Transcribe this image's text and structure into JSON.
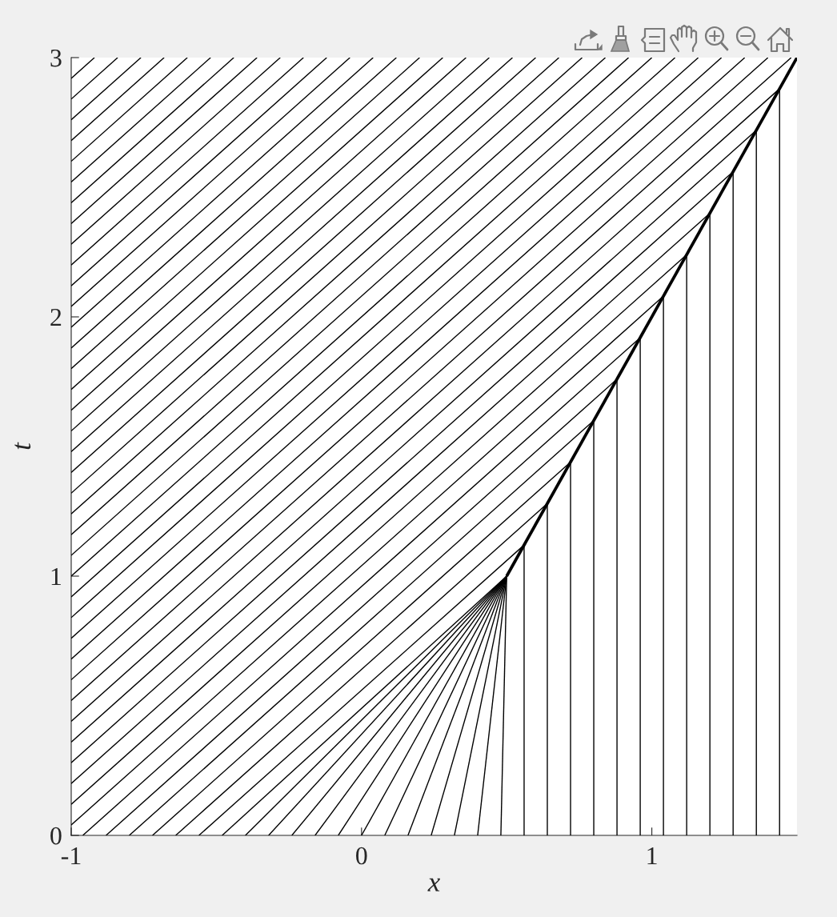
{
  "chart_data": {
    "type": "line",
    "xlim": [
      -1,
      1.5
    ],
    "ylim": [
      0,
      3
    ],
    "xticks": [
      -1,
      0,
      1
    ],
    "yticks": [
      0,
      1,
      2,
      3
    ],
    "xlabel": "x",
    "ylabel": "t",
    "series": [
      {
        "color": "#000000",
        "x": [
          0.5,
          1.5
        ],
        "values": [
          1,
          3
        ]
      },
      {
        "color": "#000000",
        "x": [
          -1,
          -0.92
        ],
        "values": [
          2.92,
          3
        ]
      },
      {
        "color": "#000000",
        "x": [
          -1,
          -0.84
        ],
        "values": [
          2.84,
          3
        ]
      },
      {
        "color": "#000000",
        "x": [
          -1,
          -0.76
        ],
        "values": [
          2.76,
          3
        ]
      },
      {
        "color": "#000000",
        "x": [
          -1,
          -0.68
        ],
        "values": [
          2.68,
          3
        ]
      },
      {
        "color": "#000000",
        "x": [
          -1,
          -0.6
        ],
        "values": [
          2.6,
          3
        ]
      },
      {
        "color": "#000000",
        "x": [
          -1,
          -0.52
        ],
        "values": [
          2.52,
          3
        ]
      },
      {
        "color": "#000000",
        "x": [
          -1,
          -0.44
        ],
        "values": [
          2.44,
          3
        ]
      },
      {
        "color": "#000000",
        "x": [
          -1,
          -0.36
        ],
        "values": [
          2.36,
          3
        ]
      },
      {
        "color": "#000000",
        "x": [
          -1,
          -0.28
        ],
        "values": [
          2.28,
          3
        ]
      },
      {
        "color": "#000000",
        "x": [
          -1,
          -0.2
        ],
        "values": [
          2.2,
          3
        ]
      },
      {
        "color": "#000000",
        "x": [
          -1,
          -0.12
        ],
        "values": [
          2.12,
          3
        ]
      },
      {
        "color": "#000000",
        "x": [
          -1,
          -0.04
        ],
        "values": [
          2.04,
          3
        ]
      },
      {
        "color": "#000000",
        "x": [
          -1,
          0.04
        ],
        "values": [
          1.96,
          3
        ]
      },
      {
        "color": "#000000",
        "x": [
          -1,
          0.12
        ],
        "values": [
          1.88,
          3
        ]
      },
      {
        "color": "#000000",
        "x": [
          -1,
          0.2
        ],
        "values": [
          1.8,
          3
        ]
      },
      {
        "color": "#000000",
        "x": [
          -1,
          0.28
        ],
        "values": [
          1.72,
          3
        ]
      },
      {
        "color": "#000000",
        "x": [
          -1,
          0.36
        ],
        "values": [
          1.64,
          3
        ]
      },
      {
        "color": "#000000",
        "x": [
          -1,
          0.44
        ],
        "values": [
          1.56,
          3
        ]
      },
      {
        "color": "#000000",
        "x": [
          -1,
          0.52
        ],
        "values": [
          1.48,
          3
        ]
      },
      {
        "color": "#000000",
        "x": [
          -1,
          0.6
        ],
        "values": [
          1.4,
          3
        ]
      },
      {
        "color": "#000000",
        "x": [
          -1,
          0.68
        ],
        "values": [
          1.32,
          3
        ]
      },
      {
        "color": "#000000",
        "x": [
          -1,
          0.76
        ],
        "values": [
          1.24,
          3
        ]
      },
      {
        "color": "#000000",
        "x": [
          -1,
          0.84
        ],
        "values": [
          1.16,
          3
        ]
      },
      {
        "color": "#000000",
        "x": [
          -1,
          0.92
        ],
        "values": [
          1.08,
          3
        ]
      },
      {
        "color": "#000000",
        "x": [
          -1,
          1
        ],
        "values": [
          1,
          3
        ]
      },
      {
        "color": "#000000",
        "x": [
          -1,
          1.08
        ],
        "values": [
          0.92,
          3
        ]
      },
      {
        "color": "#000000",
        "x": [
          -1,
          1.16
        ],
        "values": [
          0.84,
          3
        ]
      },
      {
        "color": "#000000",
        "x": [
          -1,
          1.24
        ],
        "values": [
          0.76,
          3
        ]
      },
      {
        "color": "#000000",
        "x": [
          -1,
          1.32
        ],
        "values": [
          0.68,
          3
        ]
      },
      {
        "color": "#000000",
        "x": [
          -1,
          1.4
        ],
        "values": [
          0.6,
          3
        ]
      },
      {
        "color": "#000000",
        "x": [
          -1,
          1.48
        ],
        "values": [
          0.52,
          3
        ]
      },
      {
        "color": "#000000",
        "x": [
          -1,
          1.44
        ],
        "values": [
          0.44,
          2.88
        ]
      },
      {
        "color": "#000000",
        "x": [
          -1,
          1.36
        ],
        "values": [
          0.36,
          2.72
        ]
      },
      {
        "color": "#000000",
        "x": [
          -1,
          1.28
        ],
        "values": [
          0.28,
          2.56
        ]
      },
      {
        "color": "#000000",
        "x": [
          -1,
          1.2
        ],
        "values": [
          0.2,
          2.4
        ]
      },
      {
        "color": "#000000",
        "x": [
          -1,
          1.12
        ],
        "values": [
          0.12,
          2.24
        ]
      },
      {
        "color": "#000000",
        "x": [
          -1,
          1.04
        ],
        "values": [
          0.04,
          2.08
        ]
      },
      {
        "color": "#000000",
        "x": [
          -0.96,
          0.96
        ],
        "values": [
          0,
          1.92
        ]
      },
      {
        "color": "#000000",
        "x": [
          -0.88,
          0.88
        ],
        "values": [
          0,
          1.76
        ]
      },
      {
        "color": "#000000",
        "x": [
          -0.8,
          0.8
        ],
        "values": [
          0,
          1.6
        ]
      },
      {
        "color": "#000000",
        "x": [
          -0.72,
          0.72
        ],
        "values": [
          0,
          1.44
        ]
      },
      {
        "color": "#000000",
        "x": [
          -0.64,
          0.64
        ],
        "values": [
          0,
          1.28
        ]
      },
      {
        "color": "#000000",
        "x": [
          -0.56,
          0.56
        ],
        "values": [
          0,
          1.12
        ]
      },
      {
        "color": "#000000",
        "x": [
          -0.48,
          0.5
        ],
        "values": [
          0,
          1
        ]
      },
      {
        "color": "#000000",
        "x": [
          -0.4,
          0.5
        ],
        "values": [
          0,
          1
        ]
      },
      {
        "color": "#000000",
        "x": [
          -0.32,
          0.5
        ],
        "values": [
          0,
          1
        ]
      },
      {
        "color": "#000000",
        "x": [
          -0.24,
          0.5
        ],
        "values": [
          0,
          1
        ]
      },
      {
        "color": "#000000",
        "x": [
          -0.16,
          0.5
        ],
        "values": [
          0,
          1
        ]
      },
      {
        "color": "#000000",
        "x": [
          -0.08,
          0.5
        ],
        "values": [
          0,
          1
        ]
      },
      {
        "color": "#000000",
        "x": [
          0,
          0.5
        ],
        "values": [
          0,
          1
        ]
      },
      {
        "color": "#000000",
        "x": [
          0.08,
          0.5
        ],
        "values": [
          0,
          1
        ]
      },
      {
        "color": "#000000",
        "x": [
          0.16,
          0.5
        ],
        "values": [
          0,
          1
        ]
      },
      {
        "color": "#000000",
        "x": [
          0.24,
          0.5
        ],
        "values": [
          0,
          1
        ]
      },
      {
        "color": "#000000",
        "x": [
          0.32,
          0.5
        ],
        "values": [
          0,
          1
        ]
      },
      {
        "color": "#000000",
        "x": [
          0.4,
          0.5
        ],
        "values": [
          0,
          1
        ]
      },
      {
        "color": "#000000",
        "x": [
          0.48,
          0.5
        ],
        "values": [
          0,
          1
        ]
      },
      {
        "color": "#000000",
        "x": [
          0.56,
          0.56
        ],
        "values": [
          0,
          1.12
        ]
      },
      {
        "color": "#000000",
        "x": [
          0.64,
          0.64
        ],
        "values": [
          0,
          1.28
        ]
      },
      {
        "color": "#000000",
        "x": [
          0.72,
          0.72
        ],
        "values": [
          0,
          1.44
        ]
      },
      {
        "color": "#000000",
        "x": [
          0.8,
          0.8
        ],
        "values": [
          0,
          1.6
        ]
      },
      {
        "color": "#000000",
        "x": [
          0.88,
          0.88
        ],
        "values": [
          0,
          1.76
        ]
      },
      {
        "color": "#000000",
        "x": [
          0.96,
          0.96
        ],
        "values": [
          0,
          1.92
        ]
      },
      {
        "color": "#000000",
        "x": [
          1.04,
          1.04
        ],
        "values": [
          0,
          2.08
        ]
      },
      {
        "color": "#000000",
        "x": [
          1.12,
          1.12
        ],
        "values": [
          0,
          2.24
        ]
      },
      {
        "color": "#000000",
        "x": [
          1.2,
          1.2
        ],
        "values": [
          0,
          2.4
        ]
      },
      {
        "color": "#000000",
        "x": [
          1.28,
          1.28
        ],
        "values": [
          0,
          2.56
        ]
      },
      {
        "color": "#000000",
        "x": [
          1.36,
          1.36
        ],
        "values": [
          0,
          2.72
        ]
      },
      {
        "color": "#000000",
        "x": [
          1.44,
          1.44
        ],
        "values": [
          0,
          2.88
        ]
      }
    ]
  }
}
